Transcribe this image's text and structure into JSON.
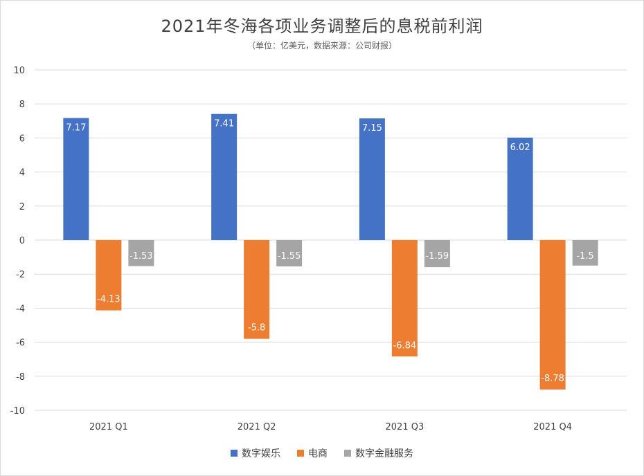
{
  "chart_data": {
    "type": "bar",
    "title": "2021年冬海各项业务调整后的息税前利润",
    "subtitle": "（单位：亿美元，数据来源：公司财报）",
    "categories": [
      "2021 Q1",
      "2021 Q2",
      "2021 Q3",
      "2021 Q4"
    ],
    "series": [
      {
        "name": "数字娱乐",
        "color": "#4472c4",
        "values": [
          7.17,
          7.41,
          7.15,
          6.02
        ],
        "labels": [
          "7.17",
          "7.41",
          "7.15",
          "6.02"
        ]
      },
      {
        "name": "电商",
        "color": "#ed7d31",
        "values": [
          -4.13,
          -5.8,
          -6.84,
          -8.78
        ],
        "labels": [
          "-4.13",
          "-5.8",
          "-6.84",
          "-8.78"
        ]
      },
      {
        "name": "数字金融服务",
        "color": "#a5a5a5",
        "values": [
          -1.53,
          -1.55,
          -1.59,
          -1.5
        ],
        "labels": [
          "-1.53",
          "-1.55",
          "-1.59",
          "-1.5"
        ]
      }
    ],
    "ylim": [
      -10,
      10
    ],
    "yticks": [
      "10",
      "8",
      "6",
      "4",
      "2",
      "0",
      "-2",
      "-4",
      "-6",
      "-8",
      "-10"
    ],
    "grid": true,
    "legend_position": "bottom"
  }
}
